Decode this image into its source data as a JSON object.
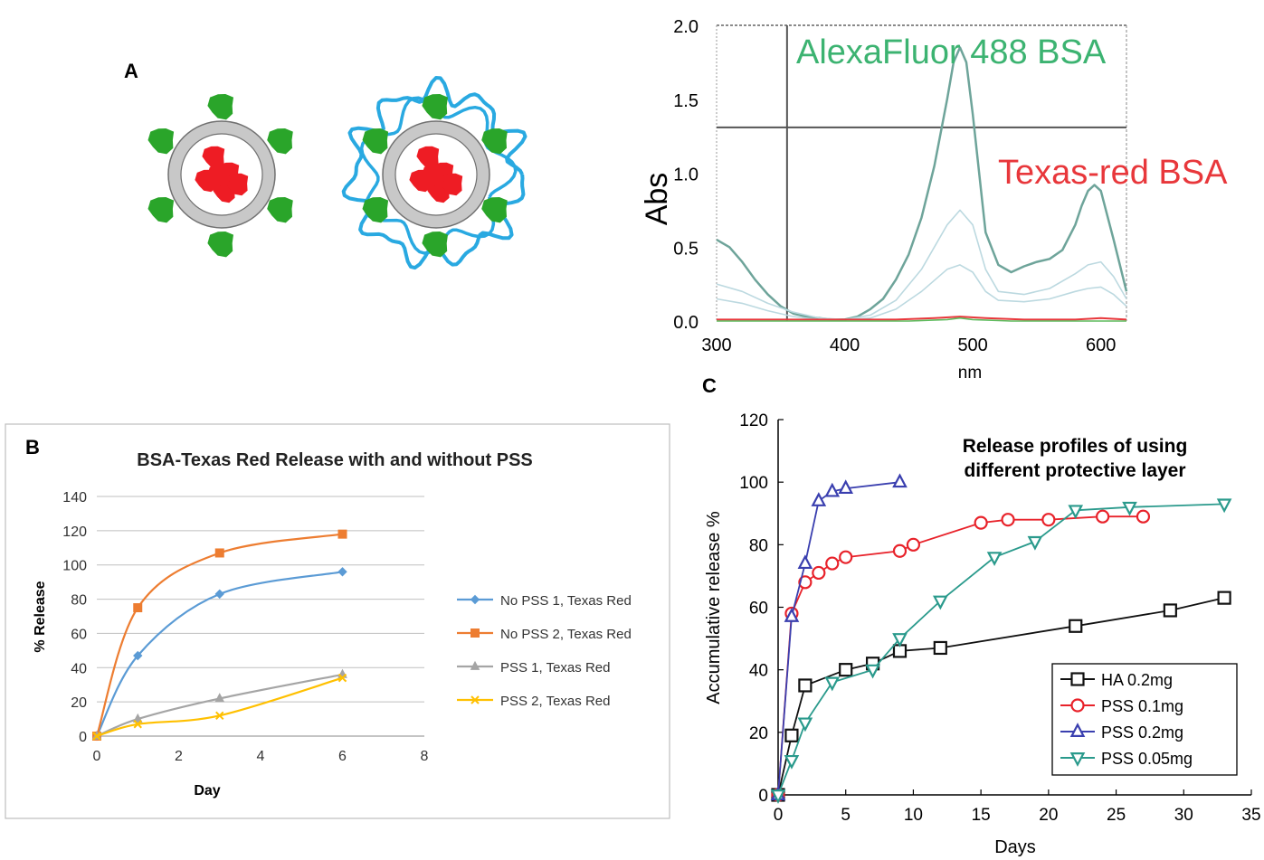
{
  "panel_labels": {
    "a": "A",
    "b": "B",
    "c": "C"
  },
  "colors": {
    "ring": "#c8c8c8",
    "ring_edge": "#707070",
    "red": "#ee1c24",
    "green": "#2aa52a",
    "blue": "#29a9e1",
    "teal": "#6ea49a",
    "alexa": "#3cb371",
    "texas": "#e8373b",
    "b_s1": "#5b9bd5",
    "b_s2": "#ed7d31",
    "b_s3": "#a5a5a5",
    "b_s4": "#ffc000",
    "c_s1": "#111111",
    "c_s2": "#e8222a",
    "c_s3": "#3a3faf",
    "c_s4": "#2a9a8c"
  },
  "chart_data": [
    {
      "id": "spectrum",
      "type": "line",
      "title": "",
      "xlabel": "nm",
      "ylabel": "Abs",
      "xlim": [
        300,
        620
      ],
      "ylim": [
        0,
        2.0
      ],
      "xticks": [
        300,
        400,
        500,
        600
      ],
      "yticks": [
        0.0,
        0.5,
        1.0,
        1.5,
        2.0
      ],
      "ytick_labels": [
        "0.0",
        "0.5",
        "1.0",
        "1.5",
        "2.0"
      ],
      "cursor_x": 355,
      "cursor_y": 1.31,
      "annotations": [
        {
          "text": "AlexaFluor 488 BSA",
          "color": "alexa"
        },
        {
          "text": "Texas-red BSA",
          "color": "texas"
        }
      ],
      "series": [
        {
          "name": "main",
          "style": "main",
          "x": [
            300,
            310,
            320,
            330,
            340,
            350,
            360,
            370,
            380,
            390,
            400,
            410,
            420,
            430,
            440,
            450,
            460,
            470,
            480,
            485,
            490,
            495,
            500,
            505,
            510,
            520,
            530,
            540,
            550,
            560,
            570,
            580,
            585,
            590,
            595,
            600,
            610,
            620
          ],
          "y": [
            0.55,
            0.5,
            0.4,
            0.28,
            0.18,
            0.1,
            0.05,
            0.03,
            0.02,
            0.01,
            0.01,
            0.03,
            0.08,
            0.15,
            0.28,
            0.45,
            0.7,
            1.05,
            1.5,
            1.75,
            1.85,
            1.75,
            1.4,
            1.0,
            0.6,
            0.38,
            0.33,
            0.37,
            0.4,
            0.42,
            0.48,
            0.65,
            0.78,
            0.88,
            0.92,
            0.88,
            0.55,
            0.2
          ]
        },
        {
          "name": "mid",
          "style": "faint",
          "x": [
            300,
            320,
            340,
            360,
            380,
            400,
            420,
            440,
            460,
            480,
            490,
            500,
            510,
            520,
            540,
            560,
            580,
            590,
            600,
            610,
            620
          ],
          "y": [
            0.25,
            0.2,
            0.12,
            0.06,
            0.02,
            0.01,
            0.04,
            0.14,
            0.35,
            0.65,
            0.75,
            0.65,
            0.35,
            0.2,
            0.18,
            0.22,
            0.32,
            0.38,
            0.4,
            0.3,
            0.15
          ]
        },
        {
          "name": "low",
          "style": "faint",
          "x": [
            300,
            320,
            340,
            360,
            380,
            400,
            420,
            440,
            460,
            480,
            490,
            500,
            510,
            520,
            540,
            560,
            580,
            590,
            600,
            610,
            620
          ],
          "y": [
            0.15,
            0.12,
            0.07,
            0.03,
            0.01,
            0.01,
            0.02,
            0.08,
            0.2,
            0.35,
            0.38,
            0.33,
            0.2,
            0.14,
            0.13,
            0.15,
            0.2,
            0.22,
            0.23,
            0.18,
            0.1
          ]
        },
        {
          "name": "red_trace",
          "style": "red",
          "x": [
            300,
            440,
            470,
            490,
            510,
            540,
            580,
            600,
            620
          ],
          "y": [
            0.01,
            0.01,
            0.02,
            0.03,
            0.02,
            0.01,
            0.01,
            0.02,
            0.01
          ]
        },
        {
          "name": "green_trace",
          "style": "green",
          "x": [
            300,
            450,
            480,
            490,
            500,
            530,
            620
          ],
          "y": [
            0.0,
            0.0,
            0.01,
            0.02,
            0.01,
            0.0,
            0.0
          ]
        }
      ]
    },
    {
      "id": "panel-b",
      "type": "line",
      "title": "BSA-Texas Red Release with and without PSS",
      "xlabel": "Day",
      "ylabel": "% Release",
      "xlim": [
        0,
        8
      ],
      "ylim": [
        0,
        140
      ],
      "xticks": [
        0,
        2,
        4,
        6,
        8
      ],
      "yticks": [
        0,
        20,
        40,
        60,
        80,
        100,
        120,
        140
      ],
      "grid": true,
      "legend_position": "right",
      "series": [
        {
          "name": "No PSS 1, Texas Red",
          "color": "b_s1",
          "marker": "diamond",
          "x": [
            0,
            1,
            3,
            6
          ],
          "y": [
            0,
            47,
            83,
            96
          ]
        },
        {
          "name": "No PSS 2, Texas Red",
          "color": "b_s2",
          "marker": "square",
          "x": [
            0,
            1,
            3,
            6
          ],
          "y": [
            0,
            75,
            107,
            118
          ]
        },
        {
          "name": "PSS 1, Texas Red",
          "color": "b_s3",
          "marker": "triangle",
          "x": [
            0,
            1,
            3,
            6
          ],
          "y": [
            0,
            10,
            22,
            36
          ]
        },
        {
          "name": "PSS 2, Texas Red",
          "color": "b_s4",
          "marker": "x",
          "x": [
            0,
            1,
            3,
            6
          ],
          "y": [
            0,
            7,
            12,
            34
          ]
        }
      ]
    },
    {
      "id": "panel-c",
      "type": "line",
      "title": "Release profiles of using different protective layer",
      "title_lines": [
        "Release profiles of using",
        "different protective layer"
      ],
      "xlabel": "Days",
      "ylabel": "Accumulative release %",
      "xlim": [
        0,
        35
      ],
      "ylim": [
        0,
        120
      ],
      "xticks": [
        0,
        5,
        10,
        15,
        20,
        25,
        30,
        35
      ],
      "yticks": [
        0,
        20,
        40,
        60,
        80,
        100,
        120
      ],
      "legend_position": "bottom-right",
      "series": [
        {
          "name": "HA 0.2mg",
          "color": "c_s1",
          "marker": "square",
          "x": [
            0,
            1,
            2,
            5,
            7,
            9,
            12,
            22,
            29,
            33
          ],
          "y": [
            0,
            19,
            35,
            40,
            42,
            46,
            47,
            54,
            59,
            63
          ]
        },
        {
          "name": "PSS 0.1mg",
          "color": "c_s2",
          "marker": "circle",
          "x": [
            0,
            1,
            2,
            3,
            4,
            5,
            9,
            10,
            15,
            17,
            20,
            24,
            27
          ],
          "y": [
            0,
            58,
            68,
            71,
            74,
            76,
            78,
            80,
            87,
            88,
            88,
            89,
            89
          ]
        },
        {
          "name": "PSS 0.2mg",
          "color": "c_s3",
          "marker": "triangle",
          "x": [
            0,
            1,
            2,
            3,
            4,
            5,
            9
          ],
          "y": [
            0,
            57,
            74,
            94,
            97,
            98,
            100
          ]
        },
        {
          "name": "PSS 0.05mg",
          "color": "c_s4",
          "marker": "triangle-down",
          "x": [
            0,
            1,
            2,
            4,
            7,
            9,
            12,
            16,
            19,
            22,
            26,
            33
          ],
          "y": [
            0,
            11,
            23,
            36,
            40,
            50,
            62,
            76,
            81,
            91,
            92,
            93
          ]
        }
      ]
    }
  ]
}
